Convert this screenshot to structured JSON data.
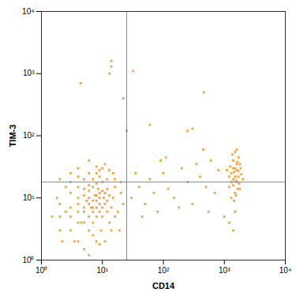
{
  "chart_data": {
    "type": "scatter",
    "x_label": "CD14",
    "y_label": "TIM-3",
    "log": true,
    "grid": false,
    "color": "#f2a541",
    "marker": "square",
    "xlim": [
      1,
      10000
    ],
    "ylim": [
      1,
      10000
    ],
    "xticks": [
      {
        "value": 1,
        "label": "10⁰"
      },
      {
        "value": 10,
        "label": "10¹"
      },
      {
        "value": 100,
        "label": "10²"
      },
      {
        "value": 1000,
        "label": "10³"
      },
      {
        "value": 10000,
        "label": "10⁴"
      }
    ],
    "yticks": [
      {
        "value": 1,
        "label": "10⁰"
      },
      {
        "value": 10,
        "label": "10¹"
      },
      {
        "value": 100,
        "label": "10²"
      },
      {
        "value": 1000,
        "label": "10³"
      },
      {
        "value": 10000,
        "label": "10⁴"
      }
    ],
    "quadrant": {
      "x": 25,
      "y": 18,
      "color": "#888888"
    },
    "x": [
      2,
      3,
      4,
      5,
      6,
      7,
      8,
      9,
      10,
      12,
      3,
      4,
      5,
      6,
      7,
      8,
      9,
      10,
      11,
      13,
      15,
      18,
      20,
      2,
      2.5,
      3.5,
      4.5,
      5.5,
      6.5,
      7.5,
      8.5,
      9.5,
      10.5,
      12,
      14,
      16,
      19,
      22,
      1.5,
      1.8,
      2.2,
      3,
      4,
      5,
      6,
      7,
      8,
      9,
      10,
      11,
      12,
      13,
      6,
      7,
      8,
      9,
      5,
      6,
      7,
      8,
      4,
      5,
      6,
      7,
      8,
      9,
      10,
      11,
      3,
      4,
      5,
      6,
      7,
      8,
      9,
      10,
      12,
      14,
      16,
      3,
      4,
      2,
      2.5,
      15,
      11,
      6,
      9,
      5,
      4,
      2,
      3,
      4,
      6,
      8,
      13,
      16,
      20,
      1200,
      1300,
      1400,
      1500,
      1600,
      1700,
      1800,
      1400,
      1500,
      1300,
      1600,
      1700,
      1500,
      1400,
      1800,
      1900,
      1250,
      1350,
      1450,
      1550,
      1650,
      1750,
      1850,
      1200,
      1300,
      1600,
      1450,
      1550,
      1650,
      2000,
      1100,
      1500,
      1400,
      1600,
      1700,
      1000,
      1200,
      1500,
      1400,
      30,
      40,
      50,
      60,
      70,
      80,
      100,
      120,
      150,
      200,
      250,
      300,
      400,
      500,
      600,
      700,
      800,
      35,
      45,
      90,
      110,
      180,
      350,
      450,
      550,
      250,
      14,
      14,
      13,
      4.4,
      32,
      460,
      25,
      60,
      300,
      22
    ],
    "values": [
      3,
      5,
      8,
      6,
      10,
      4,
      7,
      12,
      5,
      9,
      12,
      15,
      20,
      3,
      15,
      2,
      6,
      18,
      8,
      4,
      10,
      6,
      12,
      8,
      15,
      2,
      4,
      9,
      7,
      11,
      14,
      3,
      10,
      20,
      7,
      15,
      3,
      8,
      5,
      10,
      2,
      25,
      30,
      1.5,
      1.2,
      2.5,
      25,
      1.8,
      30,
      2,
      14,
      11,
      5,
      6,
      9,
      8,
      7,
      8,
      9,
      5,
      6,
      11,
      13,
      7,
      11,
      10,
      7,
      12,
      7,
      10,
      4,
      16,
      20,
      17,
      22,
      13,
      6,
      3,
      5,
      3,
      2,
      5,
      6,
      25,
      35,
      40,
      28,
      14,
      4,
      20,
      18,
      22,
      25,
      32,
      28,
      20,
      18,
      15,
      25,
      20,
      30,
      18,
      22,
      35,
      40,
      12,
      10,
      28,
      45,
      55,
      16,
      14,
      24,
      32,
      50,
      26,
      19,
      38,
      17,
      30,
      22,
      18,
      60,
      9,
      11,
      14,
      20,
      28,
      22,
      30,
      35,
      27,
      5,
      4,
      6,
      3,
      10,
      15,
      8,
      20,
      12,
      6,
      25,
      14,
      10,
      30,
      18,
      8,
      22,
      15,
      40,
      12,
      28,
      25,
      5,
      40,
      45,
      7,
      35,
      60,
      6,
      120,
      1600,
      1300,
      1000,
      700,
      1100,
      500,
      120,
      150,
      130,
      400
    ]
  }
}
